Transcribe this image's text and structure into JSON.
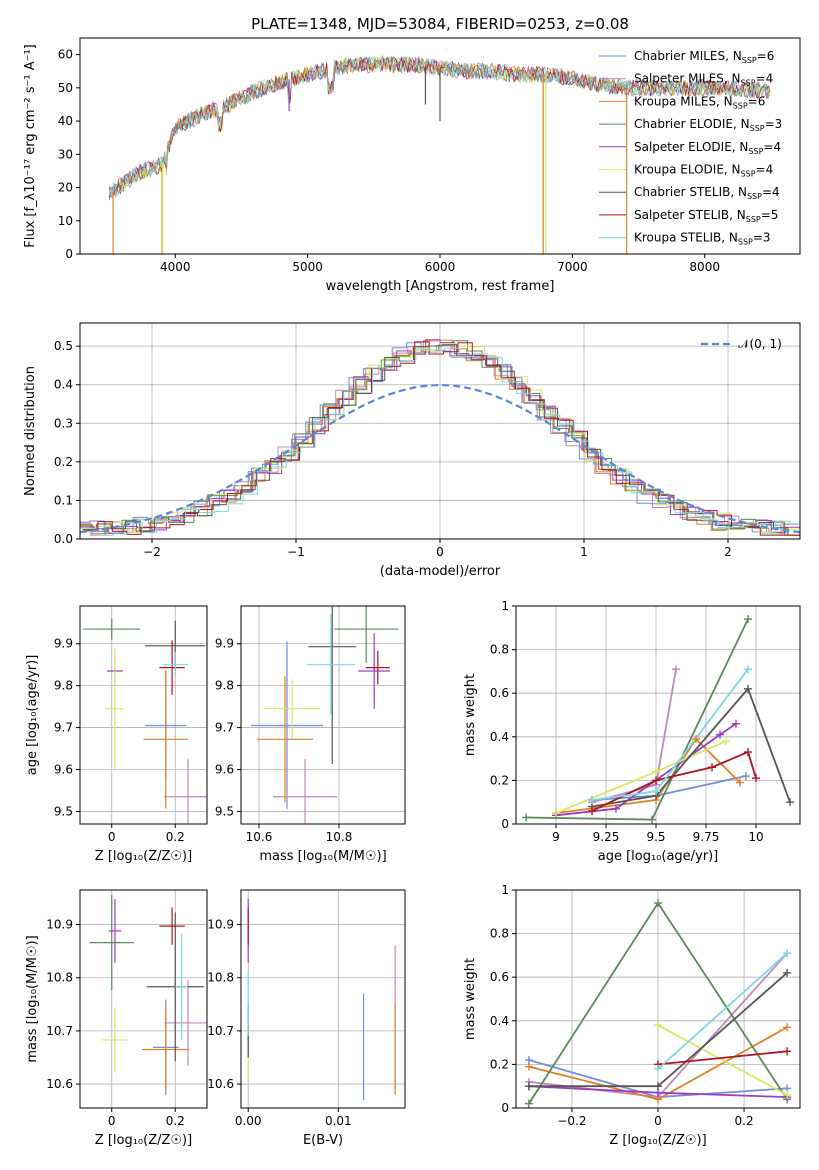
{
  "title": "PLATE=1348, MJD=53084, FIBERID=0253, z=0.08",
  "models": [
    {
      "name": "Chabrier MILES, N$_{SSP}$=6",
      "label": "Chabrier MILES, N",
      "n": "6",
      "color": "#6f8fd8"
    },
    {
      "name": "Salpeter MILES, N$_{SSP}$=4",
      "label": "Salpeter MILES, N",
      "n": "4",
      "color": "#c08ab8"
    },
    {
      "name": "Kroupa MILES, N$_{SSP}$=6",
      "label": "Kroupa MILES, N",
      "n": "6",
      "color": "#e0812a"
    },
    {
      "name": "Chabrier ELODIE, N$_{SSP}$=3",
      "label": "Chabrier ELODIE, N",
      "n": "3",
      "color": "#5a8a5a"
    },
    {
      "name": "Salpeter ELODIE, N$_{SSP}$=4",
      "label": "Salpeter ELODIE, N",
      "n": "4",
      "color": "#9b3fc0"
    },
    {
      "name": "Kroupa ELODIE, N$_{SSP}$=4",
      "label": "Kroupa ELODIE, N",
      "n": "4",
      "color": "#d8e860"
    },
    {
      "name": "Chabrier STELIB, N$_{SSP}$=4",
      "label": "Chabrier STELIB, N",
      "n": "4",
      "color": "#555555"
    },
    {
      "name": "Salpeter STELIB, N$_{SSP}$=5",
      "label": "Salpeter STELIB, N",
      "n": "5",
      "color": "#b0141e"
    },
    {
      "name": "Kroupa STELIB, N$_{SSP}$=3",
      "label": "Kroupa STELIB, N",
      "n": "3",
      "color": "#7dd8e0"
    }
  ],
  "legend_sub": "SSP",
  "chart_data": [
    {
      "id": "spectrum",
      "type": "line",
      "xlabel": "wavelength [Angstrom, rest frame]",
      "ylabel": "Flux [f_λ10⁻¹⁷ erg cm⁻² s⁻¹ A⁻¹]",
      "xlim": [
        3280,
        8720
      ],
      "ylim": [
        0,
        65
      ],
      "xticks": [
        4000,
        5000,
        6000,
        7000,
        8000
      ],
      "yticks": [
        0,
        10,
        20,
        30,
        40,
        50,
        60
      ],
      "continuum": [
        [
          3500,
          18
        ],
        [
          3700,
          24
        ],
        [
          3900,
          27
        ],
        [
          4000,
          38
        ],
        [
          4200,
          42
        ],
        [
          4400,
          45
        ],
        [
          4600,
          49
        ],
        [
          4800,
          52
        ],
        [
          5000,
          54
        ],
        [
          5200,
          56
        ],
        [
          5400,
          57
        ],
        [
          5600,
          57
        ],
        [
          5800,
          57
        ],
        [
          6000,
          56
        ],
        [
          6200,
          55
        ],
        [
          6400,
          55
        ],
        [
          6600,
          54
        ],
        [
          6800,
          54
        ],
        [
          7000,
          53
        ],
        [
          7200,
          51
        ],
        [
          7400,
          50
        ],
        [
          7600,
          50
        ],
        [
          8000,
          50
        ],
        [
          8500,
          49
        ]
      ],
      "dips": [
        [
          3530,
          "#e0812a",
          0
        ],
        [
          3900,
          "#e0812a",
          0
        ],
        [
          3905,
          "#d8e860",
          0
        ],
        [
          6800,
          "#d8e860",
          0
        ],
        [
          6780,
          "#e0812a",
          0
        ],
        [
          7410,
          "#e0812a",
          0
        ],
        [
          4380,
          "#6f8fd8",
          45
        ],
        [
          5890,
          "#555555",
          45
        ],
        [
          6000,
          "#555555",
          40
        ],
        [
          4860,
          "#9b3fc0",
          43
        ]
      ],
      "legend": "upper right"
    },
    {
      "id": "residuals",
      "type": "histogram",
      "xlabel": "(data-model)/error",
      "ylabel": "Normed distribution",
      "xlim": [
        -2.5,
        2.5
      ],
      "ylim": [
        0,
        0.56
      ],
      "xticks": [
        -2,
        -1,
        0,
        1,
        2
      ],
      "yticks": [
        0.0,
        0.1,
        0.2,
        0.3,
        0.4,
        0.5
      ],
      "bin_width": 0.1,
      "legend_label": "𝒩(0, 1)",
      "reference_curve": "normal(0,1)"
    },
    {
      "id": "age-vs-Z",
      "type": "scatter",
      "xlabel": "Z [log₁₀(Z/Z☉)]",
      "ylabel": "age  [log₁₀(age/yr)]",
      "xlim": [
        -0.1,
        0.3
      ],
      "ylim": [
        9.47,
        9.99
      ],
      "xticks": [
        0.0,
        0.2
      ],
      "yticks": [
        9.5,
        9.6,
        9.7,
        9.8,
        9.9
      ],
      "points": [
        {
          "model": 0,
          "x": 0.17,
          "y": 9.705,
          "xerr": 0.065,
          "yerr": 0.13
        },
        {
          "model": 1,
          "x": 0.24,
          "y": 9.535,
          "xerr": 0.075,
          "yerr": 0.09
        },
        {
          "model": 2,
          "x": 0.17,
          "y": 9.672,
          "xerr": 0.07,
          "yerr": 0.165
        },
        {
          "model": 3,
          "x": 0.0,
          "y": 9.935,
          "xerr": 0.09,
          "yerr": 0.025
        },
        {
          "model": 4,
          "x": 0.01,
          "y": 9.835,
          "xerr": 0.025,
          "yerr": 0.035
        },
        {
          "model": 5,
          "x": 0.01,
          "y": 9.745,
          "xerr": 0.03,
          "yerr": 0.145
        },
        {
          "model": 6,
          "x": 0.2,
          "y": 9.895,
          "xerr": 0.095,
          "yerr": 0.06
        },
        {
          "model": 7,
          "x": 0.19,
          "y": 9.843,
          "xerr": 0.04,
          "yerr": 0.065
        },
        {
          "model": 8,
          "x": 0.2,
          "y": 9.85,
          "xerr": 0.04,
          "yerr": 0.03
        }
      ]
    },
    {
      "id": "age-vs-mass",
      "type": "scatter",
      "xlabel": "mass [log₁₀(M/M☉)]",
      "ylabel": "",
      "xlim": [
        10.555,
        10.965
      ],
      "ylim": [
        9.47,
        9.99
      ],
      "xticks": [
        10.6,
        10.8
      ],
      "yticks": [
        9.5,
        9.6,
        9.7,
        9.8,
        9.9
      ],
      "points": [
        {
          "model": 0,
          "x": 10.67,
          "y": 9.705,
          "xerr": 0.09,
          "yerr": 0.2
        },
        {
          "model": 1,
          "x": 10.715,
          "y": 9.535,
          "xerr": 0.08,
          "yerr": 0.09
        },
        {
          "model": 2,
          "x": 10.665,
          "y": 9.672,
          "xerr": 0.07,
          "yerr": 0.15
        },
        {
          "model": 3,
          "x": 10.868,
          "y": 9.935,
          "xerr": 0.08,
          "yerr": 0.08
        },
        {
          "model": 4,
          "x": 10.888,
          "y": 9.835,
          "xerr": 0.04,
          "yerr": 0.09
        },
        {
          "model": 5,
          "x": 10.683,
          "y": 9.745,
          "xerr": 0.07,
          "yerr": 0.07
        },
        {
          "model": 6,
          "x": 10.783,
          "y": 9.893,
          "xerr": 0.06,
          "yerr": 0.28
        },
        {
          "model": 7,
          "x": 10.897,
          "y": 9.843,
          "xerr": 0.03,
          "yerr": 0.04
        },
        {
          "model": 8,
          "x": 10.78,
          "y": 9.85,
          "xerr": 0.06,
          "yerr": 0.12
        }
      ]
    },
    {
      "id": "weight-vs-age",
      "type": "line",
      "xlabel": "age  [log₁₀(age/yr)]",
      "ylabel": "mass weight",
      "xlim": [
        8.8,
        10.22
      ],
      "ylim": [
        0.0,
        1.0
      ],
      "xticks": [
        9.0,
        9.25,
        9.5,
        9.75,
        10.0
      ],
      "yticks": [
        0.0,
        0.2,
        0.4,
        0.6,
        0.8,
        1.0
      ],
      "series": [
        {
          "model": 0,
          "x": [
            9.18,
            9.5,
            9.95
          ],
          "y": [
            0.11,
            0.13,
            0.22
          ]
        },
        {
          "model": 1,
          "x": [
            9.18,
            9.5,
            9.6
          ],
          "y": [
            0.1,
            0.18,
            0.71
          ]
        },
        {
          "model": 2,
          "x": [
            9.0,
            9.5,
            9.7,
            9.92
          ],
          "y": [
            0.05,
            0.11,
            0.39,
            0.19
          ]
        },
        {
          "model": 3,
          "x": [
            8.85,
            9.48,
            9.96
          ],
          "y": [
            0.03,
            0.02,
            0.94
          ]
        },
        {
          "model": 4,
          "x": [
            9.0,
            9.3,
            9.82,
            9.9
          ],
          "y": [
            0.04,
            0.07,
            0.41,
            0.46
          ]
        },
        {
          "model": 5,
          "x": [
            9.0,
            9.5,
            9.85
          ],
          "y": [
            0.05,
            0.24,
            0.38
          ]
        },
        {
          "model": 6,
          "x": [
            9.18,
            9.5,
            9.96,
            10.17
          ],
          "y": [
            0.08,
            0.13,
            0.62,
            0.1
          ]
        },
        {
          "model": 7,
          "x": [
            9.18,
            9.5,
            9.78,
            9.96,
            10.0
          ],
          "y": [
            0.06,
            0.2,
            0.26,
            0.33,
            0.21
          ]
        },
        {
          "model": 8,
          "x": [
            9.18,
            9.5,
            9.96
          ],
          "y": [
            0.11,
            0.15,
            0.71
          ]
        }
      ]
    },
    {
      "id": "mass-vs-Z",
      "type": "scatter",
      "xlabel": "Z [log₁₀(Z/Z☉)]",
      "ylabel": "mass [log₁₀(M/M☉)]",
      "xlim": [
        -0.1,
        0.3
      ],
      "ylim": [
        10.555,
        10.965
      ],
      "xticks": [
        0.0,
        0.2
      ],
      "yticks": [
        10.6,
        10.7,
        10.8,
        10.9
      ],
      "points": [
        {
          "model": 0,
          "x": 0.17,
          "y": 10.669,
          "xerr": 0.04,
          "yerr": 0.09
        },
        {
          "model": 1,
          "x": 0.24,
          "y": 10.715,
          "xerr": 0.075,
          "yerr": 0.08
        },
        {
          "model": 2,
          "x": 0.17,
          "y": 10.665,
          "xerr": 0.075,
          "yerr": 0.075
        },
        {
          "model": 3,
          "x": 0.0,
          "y": 10.866,
          "xerr": 0.07,
          "yerr": 0.09
        },
        {
          "model": 4,
          "x": 0.01,
          "y": 10.888,
          "xerr": 0.02,
          "yerr": 0.06
        },
        {
          "model": 5,
          "x": 0.01,
          "y": 10.683,
          "xerr": 0.04,
          "yerr": 0.06
        },
        {
          "model": 6,
          "x": 0.2,
          "y": 10.783,
          "xerr": 0.09,
          "yerr": 0.14
        },
        {
          "model": 7,
          "x": 0.19,
          "y": 10.897,
          "xerr": 0.04,
          "yerr": 0.035
        },
        {
          "model": 8,
          "x": 0.22,
          "y": 10.783,
          "xerr": 0.02,
          "yerr": 0.1
        }
      ]
    },
    {
      "id": "mass-vs-EBV",
      "type": "scatter",
      "xlabel": "E(B-V)",
      "ylabel": "",
      "xlim": [
        -0.0008,
        0.0174
      ],
      "ylim": [
        10.555,
        10.965
      ],
      "xticks": [
        0.0,
        0.01
      ],
      "xticklabels": [
        "0.00",
        "0.01"
      ],
      "yticks": [
        10.6,
        10.7,
        10.8,
        10.9
      ],
      "points": [
        {
          "model": 0,
          "x": 0.0128,
          "y": 10.67,
          "xerr": 0,
          "yerr": 0.1
        },
        {
          "model": 1,
          "x": 0.0163,
          "y": 10.72,
          "xerr": 0,
          "yerr": 0.14
        },
        {
          "model": 2,
          "x": 0.0163,
          "y": 10.665,
          "xerr": 0,
          "yerr": 0.085
        },
        {
          "model": 3,
          "x": 0.0,
          "y": 10.7,
          "xerr": 0,
          "yerr": 0.05
        },
        {
          "model": 4,
          "x": 0.0,
          "y": 10.888,
          "xerr": 0,
          "yerr": 0.06
        },
        {
          "model": 5,
          "x": 0.0,
          "y": 10.64,
          "xerr": 0,
          "yerr": 0.03
        },
        {
          "model": 6,
          "x": 0.0,
          "y": 10.68,
          "xerr": 0,
          "yerr": 0.03
        },
        {
          "model": 7,
          "x": 0.0,
          "y": 10.897,
          "xerr": 0,
          "yerr": 0.035
        },
        {
          "model": 8,
          "x": 0.0,
          "y": 10.75,
          "xerr": 0,
          "yerr": 0.06
        }
      ]
    },
    {
      "id": "weight-vs-Z",
      "type": "line",
      "xlabel": "Z [log₁₀(Z/Z☉)]",
      "ylabel": "mass weight",
      "xlim": [
        -0.33,
        0.33
      ],
      "ylim": [
        0.0,
        1.0
      ],
      "xticks": [
        -0.2,
        0.0,
        0.2
      ],
      "yticks": [
        0.0,
        0.2,
        0.4,
        0.6,
        0.8,
        1.0
      ],
      "series": [
        {
          "model": 0,
          "x": [
            -0.3,
            0.0,
            0.3
          ],
          "y": [
            0.22,
            0.05,
            0.09
          ]
        },
        {
          "model": 1,
          "x": [
            -0.3,
            0.0,
            0.3
          ],
          "y": [
            0.12,
            0.05,
            0.71
          ]
        },
        {
          "model": 2,
          "x": [
            -0.3,
            0.0,
            0.3
          ],
          "y": [
            0.19,
            0.04,
            0.37
          ]
        },
        {
          "model": 3,
          "x": [
            -0.3,
            0.0,
            0.3
          ],
          "y": [
            0.02,
            0.94,
            0.04
          ]
        },
        {
          "model": 4,
          "x": [
            -0.3,
            0.0,
            0.3
          ],
          "y": [
            0.1,
            0.07,
            0.05
          ]
        },
        {
          "model": 5,
          "x": [
            0.0,
            0.3
          ],
          "y": [
            0.38,
            0.06
          ]
        },
        {
          "model": 6,
          "x": [
            -0.3,
            0.0,
            0.3
          ],
          "y": [
            0.1,
            0.1,
            0.62
          ]
        },
        {
          "model": 7,
          "x": [
            0.0,
            0.3
          ],
          "y": [
            0.2,
            0.26
          ]
        },
        {
          "model": 8,
          "x": [
            0.0,
            0.3
          ],
          "y": [
            0.18,
            0.71
          ]
        }
      ]
    }
  ]
}
